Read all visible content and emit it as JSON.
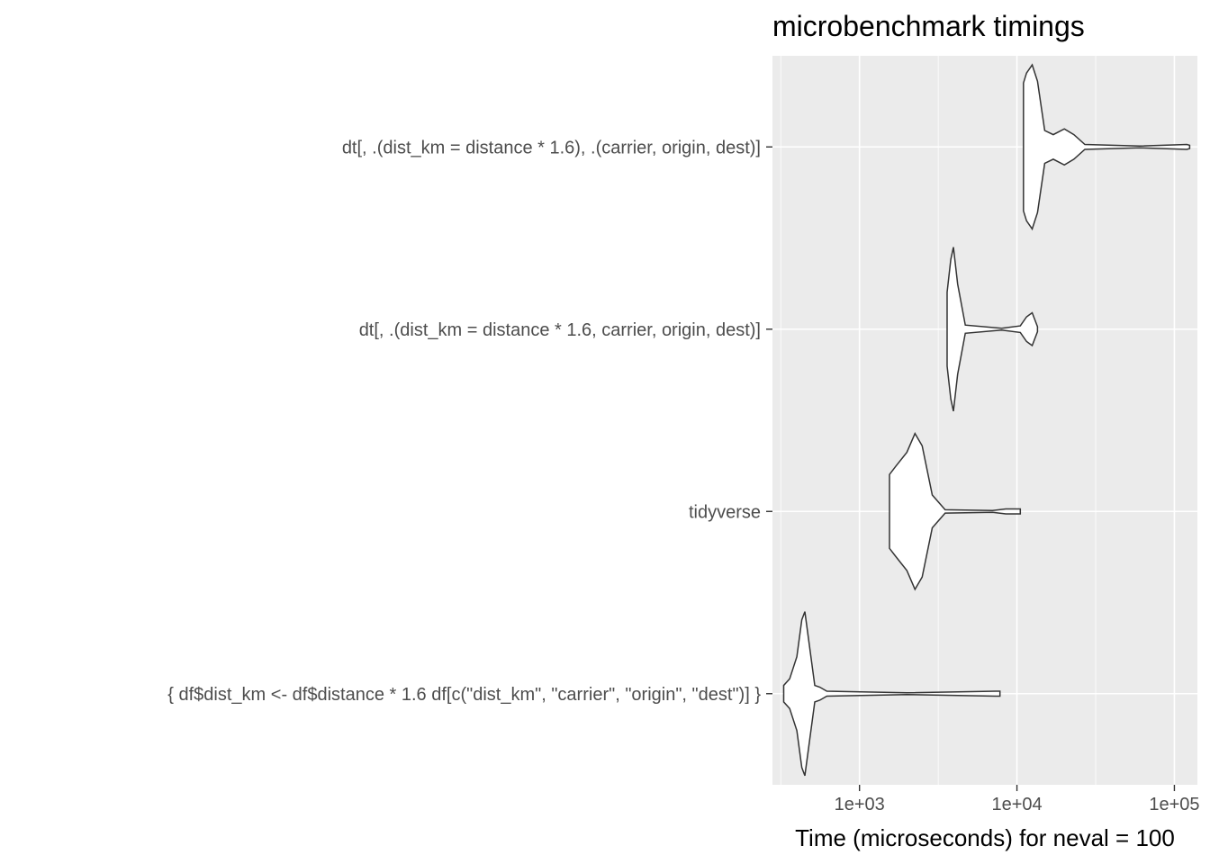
{
  "chart_data": {
    "type": "violin",
    "title": "microbenchmark timings",
    "xlabel": "Time (microseconds) for neval = 100",
    "ylabel": "",
    "x_scale": "log10",
    "xlim": [
      280,
      140000
    ],
    "x_ticks": [
      1000,
      10000,
      100000
    ],
    "x_tick_labels": [
      "1e+03",
      "1e+04",
      "1e+05"
    ],
    "grid": true,
    "categories": [
      "dt[, .(dist_km = distance * 1.6), .(carrier, origin, dest)]",
      "dt[, .(dist_km = distance * 1.6, carrier, origin, dest)]",
      "tidyverse",
      "{     df$dist_km <- df$distance * 1.6     df[c(\"dist_km\", \"carrier\", \"origin\", \"dest\")] }"
    ],
    "series": [
      {
        "category": "dt[, .(dist_km = distance * 1.6), .(carrier, origin, dest)]",
        "min": 11000,
        "max": 125000,
        "density": [
          [
            11000,
            0.78
          ],
          [
            11500,
            0.9
          ],
          [
            12500,
            1.0
          ],
          [
            13500,
            0.8
          ],
          [
            15000,
            0.2
          ],
          [
            17000,
            0.15
          ],
          [
            20000,
            0.22
          ],
          [
            23000,
            0.15
          ],
          [
            27000,
            0.03
          ],
          [
            60000,
            0.01
          ],
          [
            120000,
            0.03
          ],
          [
            125000,
            0.02
          ]
        ]
      },
      {
        "category": "dt[, .(dist_km = distance * 1.6, carrier, origin, dest)]",
        "min": 3600,
        "max": 13500,
        "density": [
          [
            3600,
            0.45
          ],
          [
            3800,
            0.85
          ],
          [
            3950,
            1.0
          ],
          [
            4200,
            0.55
          ],
          [
            4700,
            0.05
          ],
          [
            8000,
            0.01
          ],
          [
            10500,
            0.04
          ],
          [
            11500,
            0.15
          ],
          [
            12500,
            0.2
          ],
          [
            13500,
            0.03
          ]
        ]
      },
      {
        "category": "tidyverse",
        "min": 1550,
        "max": 10500,
        "density": [
          [
            1550,
            0.45
          ],
          [
            1700,
            0.55
          ],
          [
            2000,
            0.72
          ],
          [
            2250,
            0.95
          ],
          [
            2500,
            0.8
          ],
          [
            2900,
            0.2
          ],
          [
            3500,
            0.02
          ],
          [
            7000,
            0.01
          ],
          [
            8500,
            0.03
          ],
          [
            10500,
            0.03
          ]
        ]
      },
      {
        "category": "{     df$dist_km <- df$distance * 1.6     df[c(\"dist_km\", \"carrier\", \"origin\", \"dest\")] }",
        "min": 330,
        "max": 7800,
        "density": [
          [
            330,
            0.1
          ],
          [
            360,
            0.18
          ],
          [
            400,
            0.45
          ],
          [
            430,
            0.9
          ],
          [
            450,
            1.0
          ],
          [
            480,
            0.6
          ],
          [
            520,
            0.1
          ],
          [
            560,
            0.08
          ],
          [
            620,
            0.03
          ],
          [
            2000,
            0.01
          ],
          [
            7300,
            0.03
          ],
          [
            7800,
            0.03
          ]
        ]
      }
    ]
  }
}
